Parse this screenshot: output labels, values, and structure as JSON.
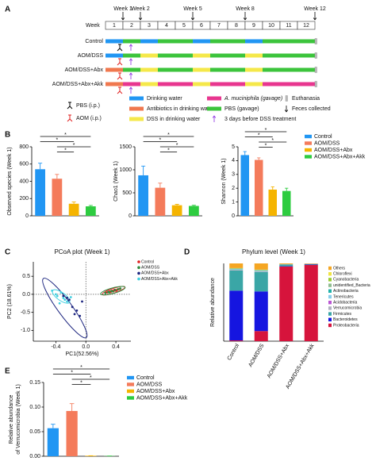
{
  "panel_labels": [
    "A",
    "B",
    "C",
    "D",
    "E"
  ],
  "timeline": {
    "week_label": "Week",
    "weeks": [
      "1",
      "2",
      "3",
      "4",
      "5",
      "6",
      "7",
      "8",
      "9",
      "10",
      "11",
      "12"
    ],
    "time_points": [
      "Week 1",
      "Week 2",
      "Week 5",
      "Week 8",
      "Week 12"
    ],
    "groups": [
      "Control",
      "AOM/DSS",
      "AOM/DSS+Abx",
      "AOM/DSS+Abx+Akk"
    ],
    "injections": [
      "PBS (i.p.)",
      "AOM (i.p.)"
    ],
    "treatments": [
      "Drinking water",
      "Antibiotics in drinking water",
      "DSS in drinking water",
      "A. muciniphila (gavage)",
      "PBS (gavage)",
      "3 days before DSS treatment"
    ],
    "treatment_colors": [
      "#2196f3",
      "#f0784f",
      "#f5e84a",
      "#e8368f",
      "#3cc43c",
      "#8a2be2"
    ],
    "events": [
      "Euthanasia",
      "Feces collected"
    ]
  },
  "chart_data": [
    {
      "type": "bar",
      "ylabel": "Observed species (Week 1)",
      "ylim": [
        0,
        800
      ],
      "yticks": [
        0,
        200,
        400,
        600,
        800
      ],
      "legend": false,
      "significance": [
        "*",
        "*",
        "*",
        "*"
      ],
      "series": [
        {
          "name": "Control",
          "color": "#2196f3",
          "values": [
            540
          ],
          "errors": [
            70
          ]
        },
        {
          "name": "AOM/DSS",
          "color": "#f47b5b",
          "values": [
            430
          ],
          "errors": [
            50
          ]
        },
        {
          "name": "AOM/DSS+Abx",
          "color": "#f5b400",
          "values": [
            140
          ],
          "errors": [
            20
          ]
        },
        {
          "name": "AOM/DSS+Abx+Akk",
          "color": "#2ecc40",
          "values": [
            110
          ],
          "errors": [
            10
          ]
        }
      ]
    },
    {
      "type": "bar",
      "ylabel": "Chao1 (Week 1)",
      "ylim": [
        0,
        1500
      ],
      "yticks": [
        0,
        500,
        1000,
        1500
      ],
      "legend": false,
      "significance": [
        "*",
        "*",
        "*",
        "*"
      ],
      "series": [
        {
          "name": "Control",
          "color": "#2196f3",
          "values": [
            880
          ],
          "errors": [
            200
          ]
        },
        {
          "name": "AOM/DSS",
          "color": "#f47b5b",
          "values": [
            610
          ],
          "errors": [
            100
          ]
        },
        {
          "name": "AOM/DSS+Abx",
          "color": "#f5b400",
          "values": [
            230
          ],
          "errors": [
            20
          ]
        },
        {
          "name": "AOM/DSS+Abx+Akk",
          "color": "#2ecc40",
          "values": [
            215
          ],
          "errors": [
            15
          ]
        }
      ]
    },
    {
      "type": "bar",
      "ylabel": "Shannon (Week 1)",
      "ylim": [
        0,
        5
      ],
      "yticks": [
        0,
        1,
        2,
        3,
        4,
        5
      ],
      "legend": true,
      "significance": [
        "*",
        "*",
        "*",
        "*"
      ],
      "series": [
        {
          "name": "Control",
          "color": "#2196f3",
          "values": [
            4.4
          ],
          "errors": [
            0.25
          ]
        },
        {
          "name": "AOM/DSS",
          "color": "#f47b5b",
          "values": [
            4.05
          ],
          "errors": [
            0.15
          ]
        },
        {
          "name": "AOM/DSS+Abx",
          "color": "#f5b400",
          "values": [
            1.9
          ],
          "errors": [
            0.2
          ]
        },
        {
          "name": "AOM/DSS+Abx+Akk",
          "color": "#2ecc40",
          "values": [
            1.8
          ],
          "errors": [
            0.2
          ]
        }
      ]
    },
    {
      "type": "scatter",
      "title": "PCoA plot (Week 1)",
      "xlabel": "PC1(52.56%)",
      "ylabel": "PC2 (18.61%)",
      "xlim": [
        -0.7,
        0.6
      ],
      "xticks": [
        {
          "value": -0.4,
          "label": "-0.4"
        },
        {
          "value": 0,
          "label": "0.0"
        },
        {
          "value": 0.4,
          "label": "0.4"
        }
      ],
      "ylim": [
        -1.3,
        0.9
      ],
      "yticks": [
        {
          "value": 0.5,
          "label": "0.5"
        },
        {
          "value": 0,
          "label": "0.0"
        },
        {
          "value": -0.5,
          "label": "-0.5"
        },
        {
          "value": -1,
          "label": "-1.0"
        }
      ],
      "legend": true,
      "series": [
        {
          "name": "Control",
          "color": "#e02020",
          "x": [
            0.28,
            0.32,
            0.35,
            0.38,
            0.4,
            0.42,
            0.45,
            0.33,
            0.37,
            0.41
          ],
          "y": [
            0.05,
            0.08,
            0.1,
            0.12,
            0.1,
            0.13,
            0.15,
            0.06,
            0.09,
            0.11
          ]
        },
        {
          "name": "AOM/DSS",
          "color": "#2e8b3e",
          "x": [
            0.26,
            0.3,
            0.34,
            0.36,
            0.39,
            0.43,
            0.46,
            0.31
          ],
          "y": [
            0.04,
            0.07,
            0.09,
            0.08,
            0.12,
            0.14,
            0.16,
            0.05
          ]
        },
        {
          "name": "AOM/DSS+Abx",
          "color": "#1a237e",
          "x": [
            -0.3,
            -0.22,
            -0.18,
            -0.12,
            -0.08,
            -0.05,
            -0.15,
            -0.25
          ],
          "y": [
            -0.05,
            -0.15,
            -0.35,
            -0.45,
            -0.6,
            -0.2,
            -0.55,
            -0.1
          ]
        },
        {
          "name": "AOM/DSS+Abx+Akk",
          "color": "#40d0e0",
          "x": [
            -0.45,
            -0.4,
            -0.38,
            -0.33,
            -0.3,
            -0.28,
            -0.25,
            -0.2,
            -0.35
          ],
          "y": [
            0.1,
            0,
            -0.05,
            0.05,
            -0.1,
            -0.15,
            -0.2,
            -0.08,
            -0.25
          ]
        }
      ]
    },
    {
      "type": "stacked_bar",
      "title": "Phylum level (Week 1)",
      "ylabel": "Relative abundance",
      "ylim": [
        0,
        1
      ],
      "legend": true,
      "categories": [
        "Control",
        "AOM/DSS",
        "AOM/DSS+Abx",
        "AOM/DSS+Abx+Akk"
      ],
      "series": [
        {
          "name": "Others",
          "color": "#f5a623",
          "values": [
            0.06,
            0.08,
            0.01,
            0.005
          ]
        },
        {
          "name": "Chloroflexi",
          "color": "#f0e442",
          "values": [
            0,
            0,
            0,
            0
          ]
        },
        {
          "name": "Cyanobacteria",
          "color": "#9acd32",
          "values": [
            0.005,
            0.005,
            0,
            0
          ]
        },
        {
          "name": "unidentified_Bacteria",
          "color": "#8fbc8f",
          "values": [
            0.005,
            0.005,
            0,
            0
          ]
        },
        {
          "name": "Actinobacteria",
          "color": "#20b2aa",
          "values": [
            0.005,
            0.005,
            0.005,
            0
          ]
        },
        {
          "name": "Tenericutes",
          "color": "#87ceeb",
          "values": [
            0.005,
            0.005,
            0,
            0
          ]
        },
        {
          "name": "Acidobacteria",
          "color": "#ba55d3",
          "values": [
            0,
            0,
            0,
            0
          ]
        },
        {
          "name": "Verrucomicrobia",
          "color": "#b0b0c0",
          "values": [
            0.01,
            0.01,
            0.005,
            0.005
          ]
        },
        {
          "name": "Firmicutes",
          "color": "#3aa6a6",
          "values": [
            0.26,
            0.25,
            0.015,
            0.005
          ]
        },
        {
          "name": "Bacteroidetes",
          "color": "#1515e0",
          "values": [
            0.64,
            0.51,
            0.005,
            0.005
          ]
        },
        {
          "name": "Proteobacteria",
          "color": "#d6143c",
          "values": [
            0.01,
            0.13,
            0.96,
            0.98
          ]
        }
      ]
    },
    {
      "type": "bar",
      "ylabel": [
        "Relative abundance",
        "of Verrucomicrobia (Week 1)"
      ],
      "ylim": [
        0,
        0.15
      ],
      "yticks": [
        {
          "value": 0,
          "label": "0.00"
        },
        {
          "value": 0.05,
          "label": "0.05"
        },
        {
          "value": 0.1,
          "label": "0.10"
        },
        {
          "value": 0.15,
          "label": "0.15"
        }
      ],
      "legend": true,
      "significance": [
        "*",
        "*",
        "*",
        "*"
      ],
      "series": [
        {
          "name": "Control",
          "color": "#2196f3",
          "values": [
            0.057
          ],
          "errors": [
            0.008
          ]
        },
        {
          "name": "AOM/DSS",
          "color": "#f47b5b",
          "values": [
            0.092
          ],
          "errors": [
            0.015
          ]
        },
        {
          "name": "AOM/DSS+Abx",
          "color": "#f5b400",
          "values": [
            0.001
          ],
          "errors": [
            0
          ]
        },
        {
          "name": "AOM/DSS+Abx+Akk",
          "color": "#2ecc40",
          "values": [
            0.0005
          ],
          "errors": [
            0
          ]
        }
      ]
    }
  ]
}
